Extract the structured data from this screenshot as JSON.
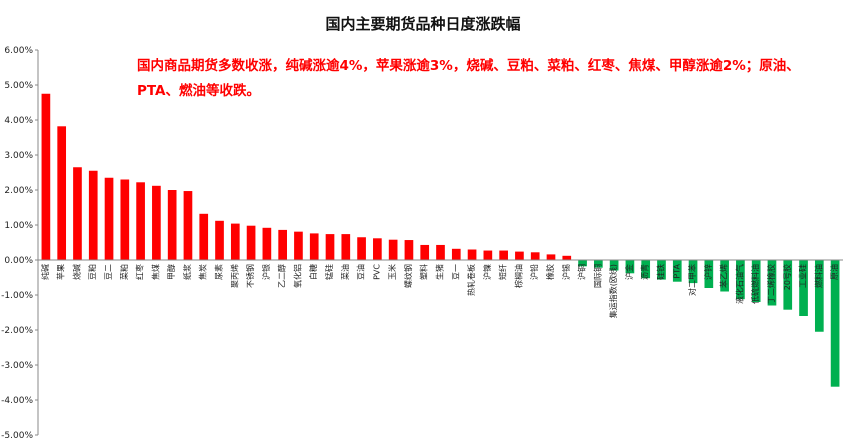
{
  "chart_data": {
    "type": "bar",
    "title": "国内主要期货品种日度涨跌幅",
    "annotation": "国内商品期货多数收涨，纯碱涨逾4%，苹果涨逾3%，烧碱、豆粕、菜粕、红枣、焦煤、甲醇涨逾2%；原油、PTA、燃油等收跌。",
    "xlabel": "",
    "ylabel": "",
    "ylim": [
      -5,
      6
    ],
    "y_ticks": [
      "-5.00%",
      "-4.00%",
      "-3.00%",
      "-2.00%",
      "-1.00%",
      "0.00%",
      "1.00%",
      "2.00%",
      "3.00%",
      "4.00%",
      "5.00%",
      "6.00%"
    ],
    "y_tick_values": [
      -5,
      -4,
      -3,
      -2,
      -1,
      0,
      1,
      2,
      3,
      4,
      5,
      6
    ],
    "categories": [
      "纯碱",
      "苹果",
      "烧碱",
      "豆粕",
      "豆二",
      "菜粕",
      "红枣",
      "焦煤",
      "甲醇",
      "纸浆",
      "焦炭",
      "尿素",
      "聚丙烯",
      "不锈钢",
      "沪银",
      "乙二醇",
      "氧化铝",
      "白糖",
      "锰硅",
      "菜油",
      "豆油",
      "PVC",
      "玉米",
      "螺纹钢",
      "塑料",
      "生猪",
      "豆一",
      "热轧卷板",
      "沪镍",
      "短纤",
      "棕榈油",
      "沪铅",
      "橡胶",
      "沪锡",
      "沪铜",
      "国际铜",
      "集运指数(欧线)",
      "沪金",
      "沥青",
      "硅铁",
      "PTA",
      "对二甲苯",
      "沪锌",
      "苯乙烯",
      "液化石油气",
      "低硫燃料油",
      "丁二烯橡胶",
      "20号胶",
      "工业硅",
      "燃料油",
      "原油"
    ],
    "values": [
      4.75,
      3.82,
      2.65,
      2.55,
      2.35,
      2.3,
      2.22,
      2.12,
      2.0,
      1.97,
      1.32,
      1.12,
      1.04,
      0.98,
      0.92,
      0.86,
      0.81,
      0.76,
      0.74,
      0.74,
      0.65,
      0.62,
      0.58,
      0.57,
      0.43,
      0.43,
      0.32,
      0.3,
      0.27,
      0.27,
      0.24,
      0.22,
      0.16,
      0.12,
      -0.18,
      -0.22,
      -0.3,
      -0.38,
      -0.52,
      -0.56,
      -0.62,
      -0.66,
      -0.8,
      -0.9,
      -1.12,
      -1.2,
      -1.3,
      -1.42,
      -1.6,
      -2.05,
      -3.62
    ],
    "colors": {
      "positive": "#ff0000",
      "negative": "#00b050"
    },
    "grid": false,
    "legend": "none"
  }
}
